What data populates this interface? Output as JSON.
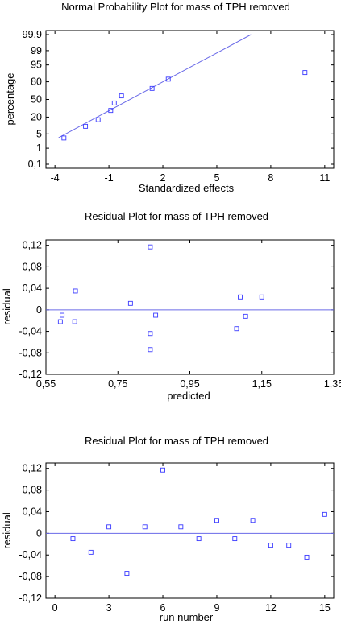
{
  "chart_data": [
    {
      "type": "scatter",
      "title": "Normal Probability Plot for mass of TPH removed",
      "xlabel": "Standardized effects",
      "ylabel": "percentage",
      "xlim": [
        -4.5,
        11.5
      ],
      "x_ticks": [
        -4,
        -1,
        2,
        5,
        8,
        11
      ],
      "x_tick_labels": [
        "-4",
        "-1",
        "2",
        "5",
        "8",
        "11"
      ],
      "y_scale": "normal-probability",
      "y_ticks": [
        0.1,
        1,
        5,
        20,
        50,
        80,
        95,
        99,
        99.9
      ],
      "y_tick_labels": [
        "0,1",
        "1",
        "5",
        "20",
        "50",
        "80",
        "95",
        "99",
        "99,9"
      ],
      "grid": false,
      "legend": "none",
      "marker_color": "#3a3aff",
      "line_color": "#6a6ae8",
      "points": [
        {
          "x": -3.5,
          "y": 3.3
        },
        {
          "x": -2.3,
          "y": 10
        },
        {
          "x": -1.6,
          "y": 16.7
        },
        {
          "x": -0.9,
          "y": 30
        },
        {
          "x": -0.7,
          "y": 43.3
        },
        {
          "x": -0.3,
          "y": 56.7
        },
        {
          "x": 1.4,
          "y": 70
        },
        {
          "x": 2.3,
          "y": 83.3
        },
        {
          "x": 9.9,
          "y": 90
        }
      ],
      "fit_line": {
        "x": [
          -3.8,
          6.9
        ],
        "y": [
          3.4,
          99.9
        ]
      }
    },
    {
      "type": "scatter",
      "title": "Residual Plot for mass of TPH removed",
      "xlabel": "predicted",
      "ylabel": "residual",
      "xlim": [
        0.55,
        1.35
      ],
      "ylim": [
        -0.12,
        0.13
      ],
      "x_ticks": [
        0.55,
        0.75,
        0.95,
        1.15,
        1.35
      ],
      "x_tick_labels": [
        "0,55",
        "0,75",
        "0,95",
        "1,15",
        "1,35"
      ],
      "y_ticks": [
        -0.12,
        -0.08,
        -0.04,
        0,
        0.04,
        0.08,
        0.12
      ],
      "y_tick_labels": [
        "-0,12",
        "-0,08",
        "-0,04",
        "0",
        "0,04",
        "0,08",
        "0,12"
      ],
      "grid": false,
      "legend": "none",
      "reference_line": 0,
      "marker_color": "#3a3aff",
      "line_color": "#6a6ae8",
      "points": [
        {
          "x": 0.59,
          "y": -0.022
        },
        {
          "x": 0.595,
          "y": -0.01
        },
        {
          "x": 0.632,
          "y": 0.035
        },
        {
          "x": 0.63,
          "y": -0.022
        },
        {
          "x": 0.785,
          "y": 0.012
        },
        {
          "x": 0.84,
          "y": 0.117
        },
        {
          "x": 0.84,
          "y": -0.044
        },
        {
          "x": 0.84,
          "y": -0.074
        },
        {
          "x": 0.855,
          "y": -0.01
        },
        {
          "x": 1.08,
          "y": -0.035
        },
        {
          "x": 1.09,
          "y": 0.024
        },
        {
          "x": 1.105,
          "y": -0.012
        },
        {
          "x": 1.15,
          "y": 0.024
        }
      ]
    },
    {
      "type": "scatter",
      "title": "Residual Plot for mass of TPH removed",
      "xlabel": "run number",
      "ylabel": "residual",
      "xlim": [
        -0.5,
        15.5
      ],
      "ylim": [
        -0.12,
        0.13
      ],
      "x_ticks": [
        0,
        3,
        6,
        9,
        12,
        15
      ],
      "x_tick_labels": [
        "0",
        "3",
        "6",
        "9",
        "12",
        "15"
      ],
      "y_ticks": [
        -0.12,
        -0.08,
        -0.04,
        0,
        0.04,
        0.08,
        0.12
      ],
      "y_tick_labels": [
        "-0,12",
        "-0,08",
        "-0,04",
        "0",
        "0,04",
        "0,08",
        "0,12"
      ],
      "grid": false,
      "legend": "none",
      "reference_line": 0,
      "marker_color": "#3a3aff",
      "line_color": "#6a6ae8",
      "points": [
        {
          "x": 1,
          "y": -0.01
        },
        {
          "x": 2,
          "y": -0.035
        },
        {
          "x": 3,
          "y": 0.012
        },
        {
          "x": 4,
          "y": -0.074
        },
        {
          "x": 5,
          "y": 0.012
        },
        {
          "x": 6,
          "y": 0.117
        },
        {
          "x": 7,
          "y": 0.012
        },
        {
          "x": 8,
          "y": -0.01
        },
        {
          "x": 9,
          "y": 0.024
        },
        {
          "x": 10,
          "y": -0.01
        },
        {
          "x": 11,
          "y": 0.024
        },
        {
          "x": 12,
          "y": -0.022
        },
        {
          "x": 13,
          "y": -0.022
        },
        {
          "x": 14,
          "y": -0.044
        },
        {
          "x": 15,
          "y": 0.035
        }
      ]
    }
  ]
}
